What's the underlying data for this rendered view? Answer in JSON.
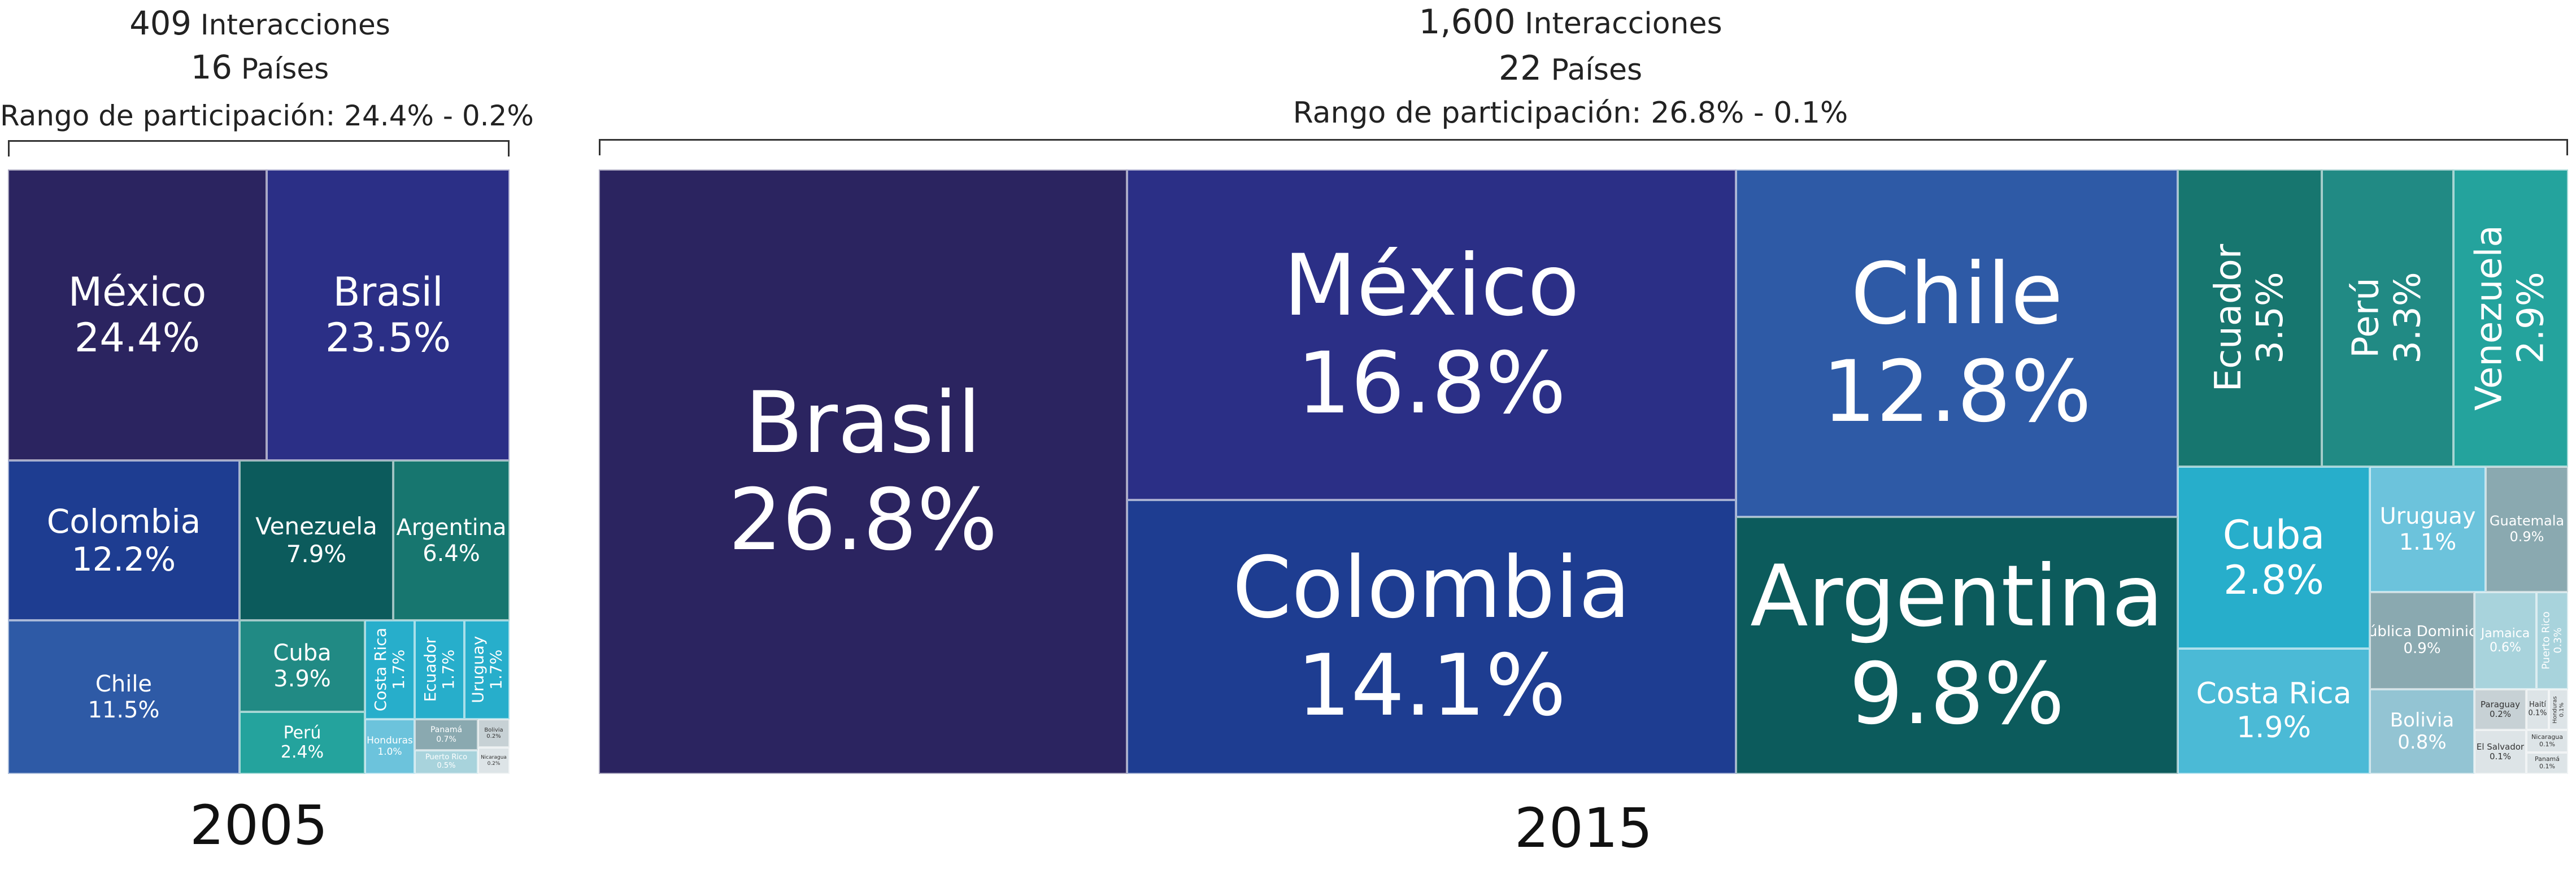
{
  "chart_data": [
    {
      "type": "treemap",
      "year": "2005",
      "summary": {
        "interactions_value": "409",
        "interactions_label": "Interacciones",
        "countries_value": "16",
        "countries_label": "Países",
        "range_label": "Rango de participación: 24.4% - 0.2%"
      },
      "items": [
        {
          "name": "México",
          "share": 24.4,
          "label": "24.4%",
          "color": "#2b2460"
        },
        {
          "name": "Brasil",
          "share": 23.5,
          "label": "23.5%",
          "color": "#2b2f86"
        },
        {
          "name": "Colombia",
          "share": 12.2,
          "label": "12.2%",
          "color": "#1e3d91"
        },
        {
          "name": "Chile",
          "share": 11.5,
          "label": "11.5%",
          "color": "#2e5aa6"
        },
        {
          "name": "Venezuela",
          "share": 7.9,
          "label": "7.9%",
          "color": "#0c5b5c"
        },
        {
          "name": "Argentina",
          "share": 6.4,
          "label": "6.4%",
          "color": "#17766f"
        },
        {
          "name": "Cuba",
          "share": 3.9,
          "label": "3.9%",
          "color": "#218a84"
        },
        {
          "name": "Perú",
          "share": 2.4,
          "label": "2.4%",
          "color": "#24a39d"
        },
        {
          "name": "Costa Rica",
          "share": 1.7,
          "label": "1.7%",
          "color": "#27aecb"
        },
        {
          "name": "Ecuador",
          "share": 1.7,
          "label": "1.7%",
          "color": "#27aecb"
        },
        {
          "name": "Uruguay",
          "share": 1.7,
          "label": "1.7%",
          "color": "#27aecb"
        },
        {
          "name": "Honduras",
          "share": 1.0,
          "label": "1.0%",
          "color": "#6cc3dc"
        },
        {
          "name": "Panamá",
          "share": 0.7,
          "label": "0.7%",
          "color": "#8aa9b0"
        },
        {
          "name": "Puerto Rico",
          "share": 0.5,
          "label": "0.5%",
          "color": "#a8d3dc"
        },
        {
          "name": "Bolivia",
          "share": 0.2,
          "label": "0.2%",
          "color": "#c7d1d5"
        },
        {
          "name": "Nicaragua",
          "share": 0.2,
          "label": "0.2%",
          "color": "#dde4e7"
        }
      ]
    },
    {
      "type": "treemap",
      "year": "2015",
      "summary": {
        "interactions_value": "1,600",
        "interactions_label": "Interacciones",
        "countries_value": "22",
        "countries_label": "Países",
        "range_label": "Rango de participación: 26.8% - 0.1%"
      },
      "items": [
        {
          "name": "Brasil",
          "share": 26.8,
          "label": "26.8%",
          "color": "#2b2460"
        },
        {
          "name": "México",
          "share": 16.8,
          "label": "16.8%",
          "color": "#2b2f86"
        },
        {
          "name": "Colombia",
          "share": 14.1,
          "label": "14.1%",
          "color": "#1e3d91"
        },
        {
          "name": "Chile",
          "share": 12.8,
          "label": "12.8%",
          "color": "#2e5aa6"
        },
        {
          "name": "Argentina",
          "share": 9.8,
          "label": "9.8%",
          "color": "#0c5b5c"
        },
        {
          "name": "Ecuador",
          "share": 3.5,
          "label": "3.5%",
          "color": "#17766f"
        },
        {
          "name": "Perú",
          "share": 3.3,
          "label": "3.3%",
          "color": "#218a84"
        },
        {
          "name": "Venezuela",
          "share": 2.9,
          "label": "2.9%",
          "color": "#24a39d"
        },
        {
          "name": "Cuba",
          "share": 2.8,
          "label": "2.8%",
          "color": "#27aecb"
        },
        {
          "name": "Costa Rica",
          "share": 1.9,
          "label": "1.9%",
          "color": "#4bbad6"
        },
        {
          "name": "Uruguay",
          "share": 1.1,
          "label": "1.1%",
          "color": "#6cc3dc"
        },
        {
          "name": "Guatemala",
          "share": 0.9,
          "label": "0.9%",
          "color": "#8aa9b0"
        },
        {
          "name": "República Dominicana",
          "share": 0.9,
          "label": "0.9%",
          "color": "#8aa9b0"
        },
        {
          "name": "Jamaica",
          "share": 0.6,
          "label": "0.6%",
          "color": "#a8d3dc"
        },
        {
          "name": "Puerto Rico",
          "share": 0.3,
          "label": "0.3%",
          "color": "#a8d3dc"
        },
        {
          "name": "Bolivia",
          "share": 0.8,
          "label": "0.8%",
          "color": "#93c4d3"
        },
        {
          "name": "Paraguay",
          "share": 0.2,
          "label": "0.2%",
          "color": "#c7d1d5"
        },
        {
          "name": "Haití",
          "share": 0.1,
          "label": "0.1%",
          "color": "#dde4e7"
        },
        {
          "name": "Honduras",
          "share": 0.1,
          "label": "0.1%",
          "color": "#dde4e7"
        },
        {
          "name": "El Salvador",
          "share": 0.1,
          "label": "0.1%",
          "color": "#dde4e7"
        },
        {
          "name": "Nicaragua",
          "share": 0.1,
          "label": "0.1%",
          "color": "#dde4e7"
        },
        {
          "name": "Panamá",
          "share": 0.1,
          "label": "0.1%",
          "color": "#dde4e7"
        }
      ]
    }
  ]
}
